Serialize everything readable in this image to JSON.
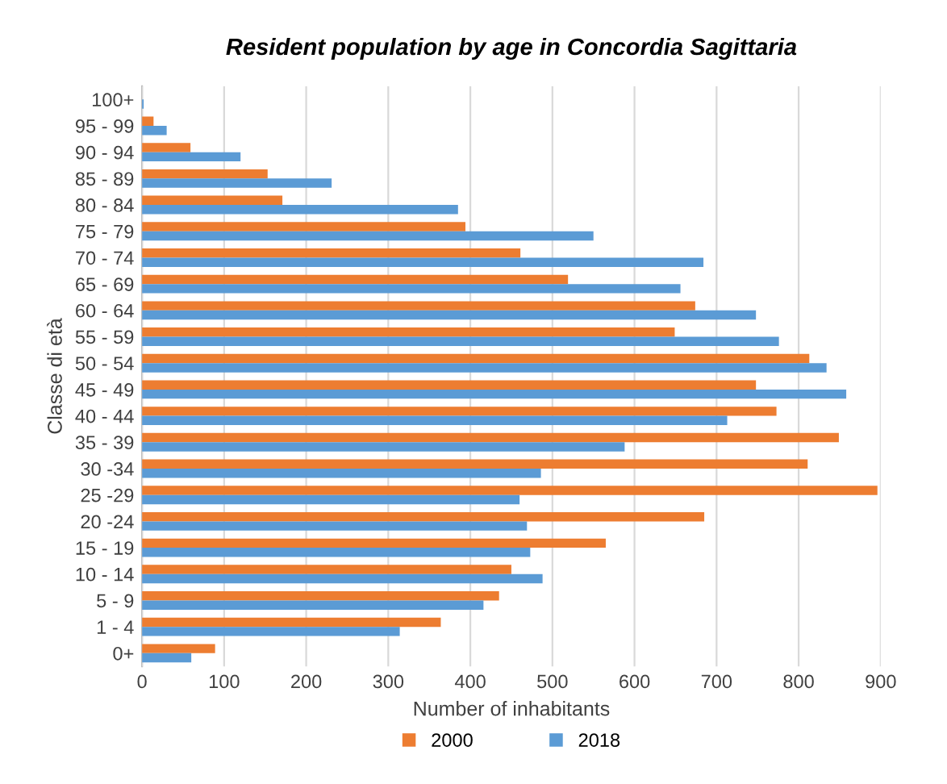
{
  "chart_data": {
    "type": "bar",
    "orientation": "horizontal",
    "title": "Resident population by age in Concordia Sagittaria",
    "xlabel": "Number of inhabitants",
    "ylabel": "Classe di età",
    "categories": [
      "100+",
      "95 - 99",
      "90 - 94",
      "85 - 89",
      "80 - 84",
      "75 - 79",
      "70 - 74",
      "65 - 69",
      "60 - 64",
      "55 - 59",
      "50 - 54",
      "45 - 49",
      "40 - 44",
      "35 - 39",
      "30 -34",
      "25 -29",
      "20 -24",
      "15 - 19",
      "10 - 14",
      "5 - 9",
      "1 - 4",
      "0+"
    ],
    "series": [
      {
        "name": "2000",
        "color": "#ed7d31",
        "values": [
          0,
          14,
          59,
          153,
          171,
          394,
          461,
          519,
          674,
          649,
          813,
          748,
          773,
          849,
          811,
          896,
          685,
          565,
          450,
          435,
          364,
          89
        ]
      },
      {
        "name": "2018",
        "color": "#5b9bd5",
        "values": [
          2,
          30,
          120,
          231,
          385,
          550,
          684,
          656,
          748,
          776,
          834,
          858,
          713,
          588,
          486,
          460,
          469,
          473,
          488,
          416,
          314,
          60
        ]
      }
    ],
    "xlim": [
      0,
      900
    ],
    "xticks": [
      0,
      100,
      200,
      300,
      400,
      500,
      600,
      700,
      800,
      900
    ],
    "grid": "x",
    "legend": "bottom"
  }
}
